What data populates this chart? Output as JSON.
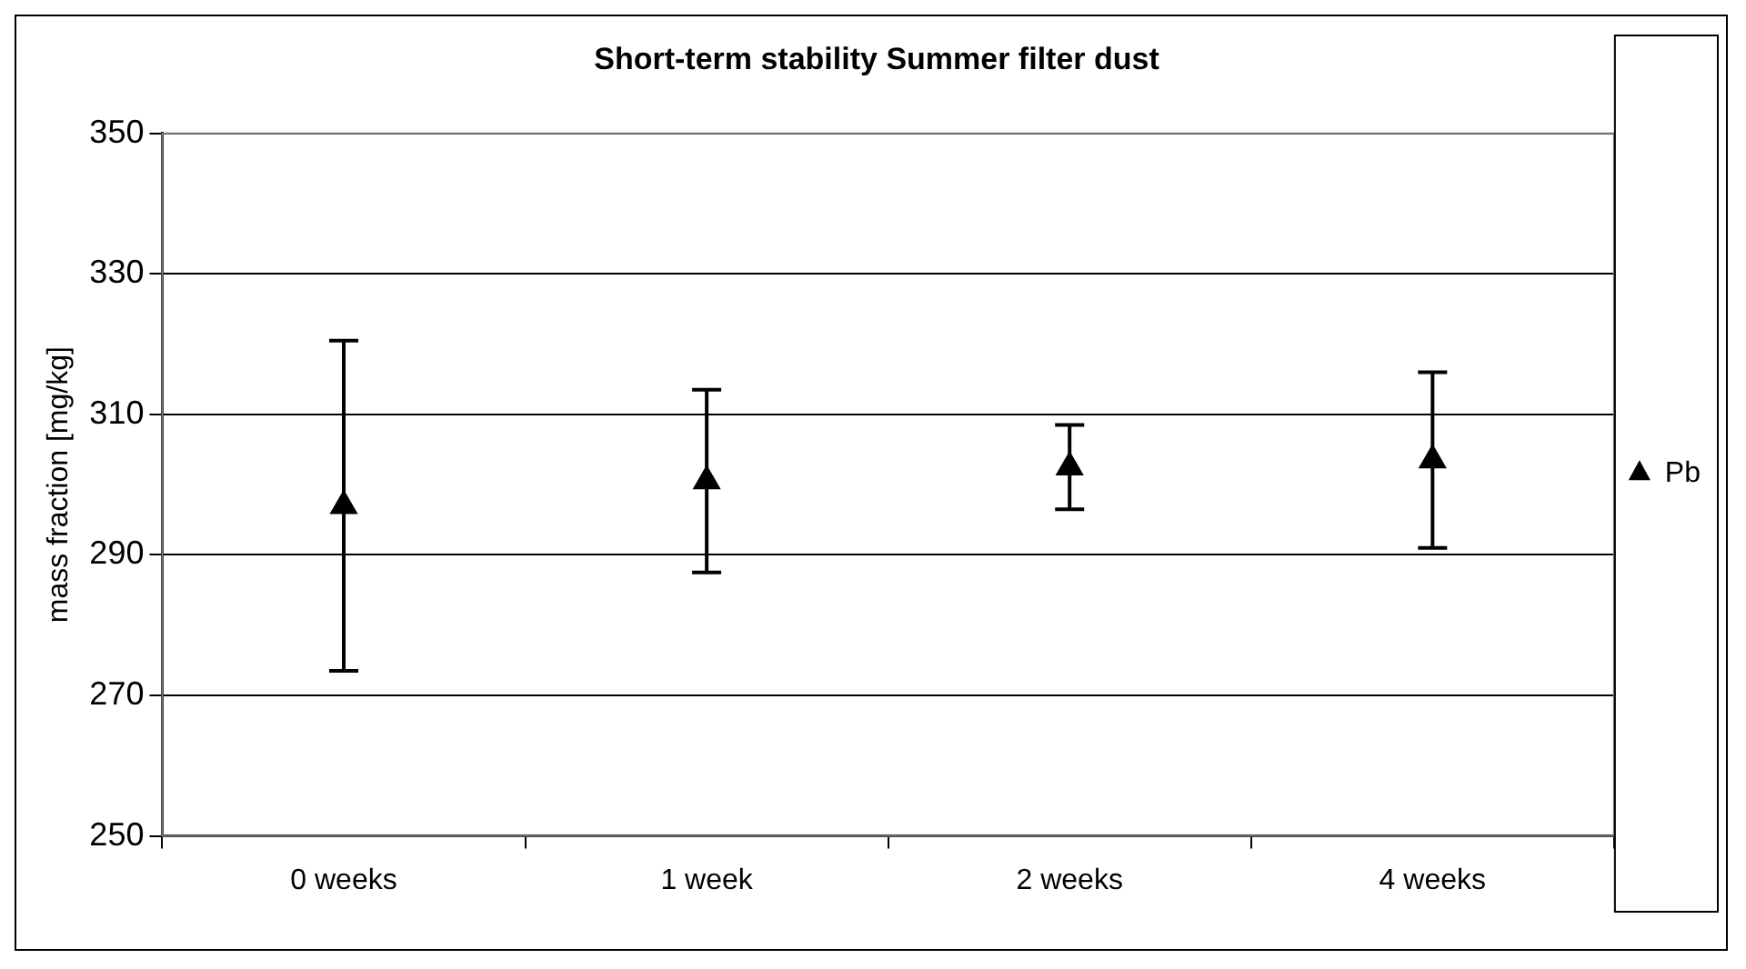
{
  "chart_data": {
    "type": "scatter",
    "title": "Short-term stability Summer filter dust",
    "ylabel": "mass fraction [mg/kg]",
    "categories": [
      "0 weeks",
      "1 week",
      "2 weeks",
      "4 weeks"
    ],
    "series": [
      {
        "name": "Pb",
        "color": "#000000",
        "values": [
          297,
          300.5,
          302.5,
          303.5
        ],
        "errors": [
          23.5,
          13,
          6,
          12.5
        ]
      }
    ],
    "ylim": [
      250,
      350
    ],
    "yticks": [
      250,
      270,
      290,
      310,
      330,
      350
    ],
    "grid": "y",
    "legend": "right",
    "marker": "triangle"
  }
}
